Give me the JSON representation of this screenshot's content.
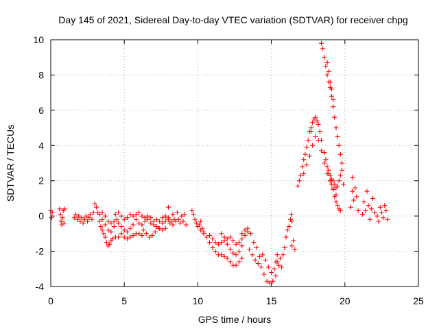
{
  "chart_data": {
    "type": "scatter",
    "title": "Day 145 of 2021, Sidereal Day-to-day VTEC variation (SDTVAR) for receiver chpg",
    "xlabel": "GPS time / hours",
    "ylabel": "SDTVAR / TECUs",
    "xlim": [
      0,
      25
    ],
    "ylim": [
      -4,
      10
    ],
    "xticks": [
      0,
      5,
      10,
      15,
      20,
      25
    ],
    "yticks": [
      -4,
      -2,
      0,
      2,
      4,
      6,
      8,
      10
    ],
    "xtick_labels": [
      "0",
      "5",
      "10",
      "15",
      "20",
      "25"
    ],
    "ytick_labels": [
      "-4",
      "-2",
      "0",
      "2",
      "4",
      "6",
      "8",
      "10"
    ],
    "grid": true,
    "legend": "none",
    "marker": "+",
    "color": "#ff0000",
    "series": [
      {
        "name": "SDTVAR",
        "points": [
          [
            0.0,
            0.3
          ],
          [
            0.05,
            -0.1
          ],
          [
            0.1,
            0.2
          ],
          [
            0.6,
            0.4
          ],
          [
            0.65,
            0.1
          ],
          [
            0.7,
            -0.3
          ],
          [
            0.75,
            -0.5
          ],
          [
            0.8,
            -0.1
          ],
          [
            0.85,
            0.3
          ],
          [
            0.9,
            -0.4
          ],
          [
            0.95,
            0.4
          ],
          [
            1.6,
            -0.1
          ],
          [
            1.7,
            0.1
          ],
          [
            1.8,
            -0.2
          ],
          [
            1.9,
            0.0
          ],
          [
            2.0,
            -0.3
          ],
          [
            2.1,
            -0.1
          ],
          [
            2.2,
            -0.4
          ],
          [
            2.3,
            -0.2
          ],
          [
            2.4,
            0.0
          ],
          [
            2.5,
            -0.3
          ],
          [
            2.6,
            -0.1
          ],
          [
            2.7,
            0.1
          ],
          [
            2.8,
            -0.2
          ],
          [
            2.9,
            0.2
          ],
          [
            3.0,
            0.7
          ],
          [
            3.1,
            0.5
          ],
          [
            3.2,
            0.2
          ],
          [
            3.3,
            -0.3
          ],
          [
            3.4,
            -0.6
          ],
          [
            3.5,
            -0.8
          ],
          [
            3.6,
            -1.0
          ],
          [
            3.7,
            -1.2
          ],
          [
            3.8,
            -1.5
          ],
          [
            3.9,
            -1.7
          ],
          [
            4.0,
            -1.6
          ],
          [
            4.1,
            -1.4
          ],
          [
            4.2,
            -1.3
          ],
          [
            4.4,
            -1.2
          ],
          [
            4.6,
            -1.2
          ],
          [
            3.3,
            0.1
          ],
          [
            3.5,
            -0.2
          ],
          [
            3.7,
            -0.5
          ],
          [
            3.9,
            -0.8
          ],
          [
            4.1,
            -0.9
          ],
          [
            4.3,
            -0.6
          ],
          [
            3.5,
            0.2
          ],
          [
            3.7,
            0.0
          ],
          [
            3.9,
            -0.3
          ],
          [
            4.1,
            -0.4
          ],
          [
            4.3,
            -0.3
          ],
          [
            4.5,
            -0.2
          ],
          [
            4.4,
            0.1
          ],
          [
            4.6,
            0.2
          ],
          [
            4.8,
            0.0
          ],
          [
            5.0,
            -0.2
          ],
          [
            5.2,
            -0.1
          ],
          [
            5.4,
            0.1
          ],
          [
            4.6,
            -0.4
          ],
          [
            4.8,
            -0.6
          ],
          [
            5.0,
            -0.8
          ],
          [
            5.2,
            -0.9
          ],
          [
            5.4,
            -0.7
          ],
          [
            5.6,
            -0.5
          ],
          [
            4.8,
            -1.0
          ],
          [
            5.0,
            -1.2
          ],
          [
            5.2,
            -1.3
          ],
          [
            5.4,
            -1.2
          ],
          [
            5.6,
            -1.1
          ],
          [
            5.8,
            -1.0
          ],
          [
            6.0,
            -1.0
          ],
          [
            6.2,
            -1.1
          ],
          [
            5.6,
            0.0
          ],
          [
            5.8,
            -0.2
          ],
          [
            6.0,
            -0.4
          ],
          [
            6.2,
            -0.5
          ],
          [
            6.4,
            -0.3
          ],
          [
            6.6,
            -0.2
          ],
          [
            5.8,
            0.1
          ],
          [
            6.0,
            0.2
          ],
          [
            6.2,
            0.0
          ],
          [
            6.4,
            -0.1
          ],
          [
            6.6,
            0.0
          ],
          [
            6.8,
            -0.1
          ],
          [
            6.3,
            -0.8
          ],
          [
            6.5,
            -1.0
          ],
          [
            6.7,
            -1.2
          ],
          [
            6.9,
            -1.1
          ],
          [
            7.1,
            -0.9
          ],
          [
            7.3,
            -0.7
          ],
          [
            6.8,
            -0.4
          ],
          [
            7.0,
            -0.5
          ],
          [
            7.2,
            -0.6
          ],
          [
            7.4,
            -0.7
          ],
          [
            7.6,
            -0.8
          ],
          [
            7.8,
            -0.7
          ],
          [
            7.0,
            -0.3
          ],
          [
            7.2,
            -0.2
          ],
          [
            7.4,
            -0.3
          ],
          [
            7.6,
            -0.4
          ],
          [
            7.8,
            -0.3
          ],
          [
            8.0,
            -0.2
          ],
          [
            7.6,
            -0.1
          ],
          [
            7.8,
            0.0
          ],
          [
            8.0,
            -0.1
          ],
          [
            8.2,
            -0.3
          ],
          [
            8.4,
            -0.2
          ],
          [
            8.1,
            -0.4
          ],
          [
            8.3,
            -0.5
          ],
          [
            8.5,
            -0.3
          ],
          [
            8.7,
            -0.2
          ],
          [
            8.9,
            0.0
          ],
          [
            9.1,
            0.1
          ],
          [
            8.0,
            0.5
          ],
          [
            8.3,
            0.1
          ],
          [
            8.6,
            0.2
          ],
          [
            8.8,
            -0.4
          ],
          [
            9.0,
            -0.3
          ],
          [
            9.2,
            -0.5
          ],
          [
            9.6,
            0.3
          ],
          [
            9.7,
            0.1
          ],
          [
            9.8,
            -0.2
          ],
          [
            9.9,
            -0.4
          ],
          [
            10.0,
            -0.6
          ],
          [
            10.1,
            -0.5
          ],
          [
            10.2,
            -0.3
          ],
          [
            10.3,
            -0.7
          ],
          [
            10.4,
            -0.9
          ],
          [
            10.2,
            -0.8
          ],
          [
            10.4,
            -1.0
          ],
          [
            10.6,
            -1.2
          ],
          [
            10.8,
            -1.5
          ],
          [
            11.0,
            -1.8
          ],
          [
            11.2,
            -2.0
          ],
          [
            11.4,
            -2.2
          ],
          [
            11.6,
            -2.2
          ],
          [
            11.8,
            -2.3
          ],
          [
            12.0,
            -2.4
          ],
          [
            12.2,
            -2.6
          ],
          [
            12.4,
            -2.8
          ],
          [
            12.6,
            -2.8
          ],
          [
            12.8,
            -2.6
          ],
          [
            13.0,
            -2.4
          ],
          [
            10.8,
            -1.1
          ],
          [
            11.0,
            -1.3
          ],
          [
            11.2,
            -1.5
          ],
          [
            11.4,
            -1.6
          ],
          [
            11.6,
            -1.5
          ],
          [
            11.8,
            -1.4
          ],
          [
            12.0,
            -1.6
          ],
          [
            12.2,
            -1.9
          ],
          [
            12.4,
            -2.1
          ],
          [
            12.6,
            -2.2
          ],
          [
            12.8,
            -2.0
          ],
          [
            13.0,
            -1.7
          ],
          [
            11.6,
            -1.0
          ],
          [
            11.8,
            -1.2
          ],
          [
            12.0,
            -1.3
          ],
          [
            12.2,
            -1.2
          ],
          [
            12.4,
            -1.4
          ],
          [
            12.6,
            -1.6
          ],
          [
            12.8,
            -1.5
          ],
          [
            13.0,
            -1.3
          ],
          [
            13.2,
            -1.1
          ],
          [
            13.4,
            -0.9
          ],
          [
            13.0,
            -1.0
          ],
          [
            13.2,
            -0.8
          ],
          [
            13.4,
            -0.7
          ],
          [
            13.6,
            -1.0
          ],
          [
            13.8,
            -1.5
          ],
          [
            14.0,
            -1.8
          ],
          [
            13.5,
            -1.9
          ],
          [
            13.7,
            -2.2
          ],
          [
            13.9,
            -2.5
          ],
          [
            14.1,
            -2.7
          ],
          [
            14.3,
            -2.9
          ],
          [
            14.5,
            -3.3
          ],
          [
            14.7,
            -3.7
          ],
          [
            14.9,
            -3.8
          ],
          [
            15.1,
            -3.7
          ],
          [
            15.3,
            -3.4
          ],
          [
            14.2,
            -2.3
          ],
          [
            14.4,
            -2.2
          ],
          [
            14.6,
            -2.5
          ],
          [
            14.8,
            -2.9
          ],
          [
            15.0,
            -3.2
          ],
          [
            15.2,
            -3.0
          ],
          [
            15.4,
            -2.6
          ],
          [
            15.3,
            -2.6
          ],
          [
            15.4,
            -2.2
          ],
          [
            15.5,
            -2.8
          ],
          [
            15.6,
            -2.4
          ],
          [
            15.7,
            -2.9
          ],
          [
            15.8,
            -2.2
          ],
          [
            15.9,
            -1.8
          ],
          [
            16.0,
            -1.2
          ],
          [
            16.1,
            -0.8
          ],
          [
            16.2,
            -0.6
          ],
          [
            16.3,
            -0.2
          ],
          [
            16.35,
            0.1
          ],
          [
            16.4,
            -0.3
          ],
          [
            16.4,
            -1.7
          ],
          [
            16.5,
            -1.4
          ],
          [
            16.6,
            -1.9
          ],
          [
            16.8,
            1.7
          ],
          [
            16.9,
            2.0
          ],
          [
            17.0,
            2.3
          ],
          [
            17.1,
            2.8
          ],
          [
            17.2,
            3.2
          ],
          [
            17.3,
            3.5
          ],
          [
            17.4,
            3.9
          ],
          [
            17.5,
            4.3
          ],
          [
            17.6,
            4.8
          ],
          [
            17.7,
            5.0
          ],
          [
            17.7,
            4.8
          ],
          [
            17.8,
            5.3
          ],
          [
            17.9,
            5.5
          ],
          [
            18.0,
            5.6
          ],
          [
            18.1,
            5.4
          ],
          [
            18.2,
            5.2
          ],
          [
            18.3,
            4.8
          ],
          [
            18.4,
            4.3
          ],
          [
            17.2,
            2.4
          ],
          [
            17.4,
            2.9
          ],
          [
            17.6,
            3.4
          ],
          [
            17.8,
            4.0
          ],
          [
            18.0,
            4.5
          ],
          [
            18.2,
            4.3
          ],
          [
            18.4,
            3.7
          ],
          [
            18.6,
            3.0
          ],
          [
            18.8,
            2.4
          ],
          [
            19.0,
            2.0
          ],
          [
            19.2,
            1.6
          ],
          [
            19.4,
            1.2
          ],
          [
            18.4,
            9.8
          ],
          [
            18.5,
            9.5
          ],
          [
            18.6,
            9.0
          ],
          [
            18.7,
            8.5
          ],
          [
            18.8,
            8.0
          ],
          [
            18.9,
            7.6
          ],
          [
            19.0,
            7.3
          ],
          [
            19.1,
            6.8
          ],
          [
            19.2,
            6.2
          ],
          [
            19.3,
            5.6
          ],
          [
            19.4,
            5.0
          ],
          [
            19.5,
            4.5
          ],
          [
            19.6,
            4.0
          ],
          [
            19.7,
            3.5
          ],
          [
            19.8,
            3.0
          ],
          [
            18.8,
            8.7
          ],
          [
            18.9,
            8.2
          ],
          [
            19.0,
            7.6
          ],
          [
            19.1,
            7.2
          ],
          [
            19.2,
            6.6
          ],
          [
            18.6,
            3.6
          ],
          [
            18.7,
            3.2
          ],
          [
            18.8,
            2.8
          ],
          [
            18.9,
            2.4
          ],
          [
            19.0,
            2.0
          ],
          [
            19.1,
            1.8
          ],
          [
            19.2,
            1.5
          ],
          [
            19.3,
            1.1
          ],
          [
            19.4,
            0.8
          ],
          [
            19.5,
            0.6
          ],
          [
            19.6,
            0.4
          ],
          [
            19.7,
            0.3
          ],
          [
            18.9,
            2.6
          ],
          [
            19.0,
            2.3
          ],
          [
            19.1,
            2.1
          ],
          [
            19.2,
            2.0
          ],
          [
            19.3,
            1.8
          ],
          [
            19.4,
            1.6
          ],
          [
            19.5,
            1.7
          ],
          [
            19.6,
            2.0
          ],
          [
            19.7,
            2.3
          ],
          [
            19.8,
            2.6
          ],
          [
            19.9,
            1.8
          ],
          [
            20.4,
            0.5
          ],
          [
            20.5,
            1.4
          ],
          [
            20.6,
            0.9
          ],
          [
            20.7,
            1.6
          ],
          [
            20.8,
            1.1
          ],
          [
            20.9,
            0.3
          ],
          [
            20.5,
            2.2
          ],
          [
            21.2,
            0.1
          ],
          [
            21.3,
            0.8
          ],
          [
            21.4,
            0.3
          ],
          [
            21.5,
            1.4
          ],
          [
            21.6,
            0.6
          ],
          [
            21.7,
            -0.2
          ],
          [
            21.8,
            0.4
          ],
          [
            21.9,
            1.0
          ],
          [
            22.0,
            0.2
          ],
          [
            22.2,
            0.0
          ],
          [
            22.3,
            -0.3
          ],
          [
            22.4,
            0.5
          ],
          [
            22.5,
            0.2
          ],
          [
            22.6,
            -0.1
          ],
          [
            22.7,
            0.6
          ],
          [
            22.8,
            0.3
          ],
          [
            22.9,
            -0.2
          ]
        ]
      }
    ]
  }
}
